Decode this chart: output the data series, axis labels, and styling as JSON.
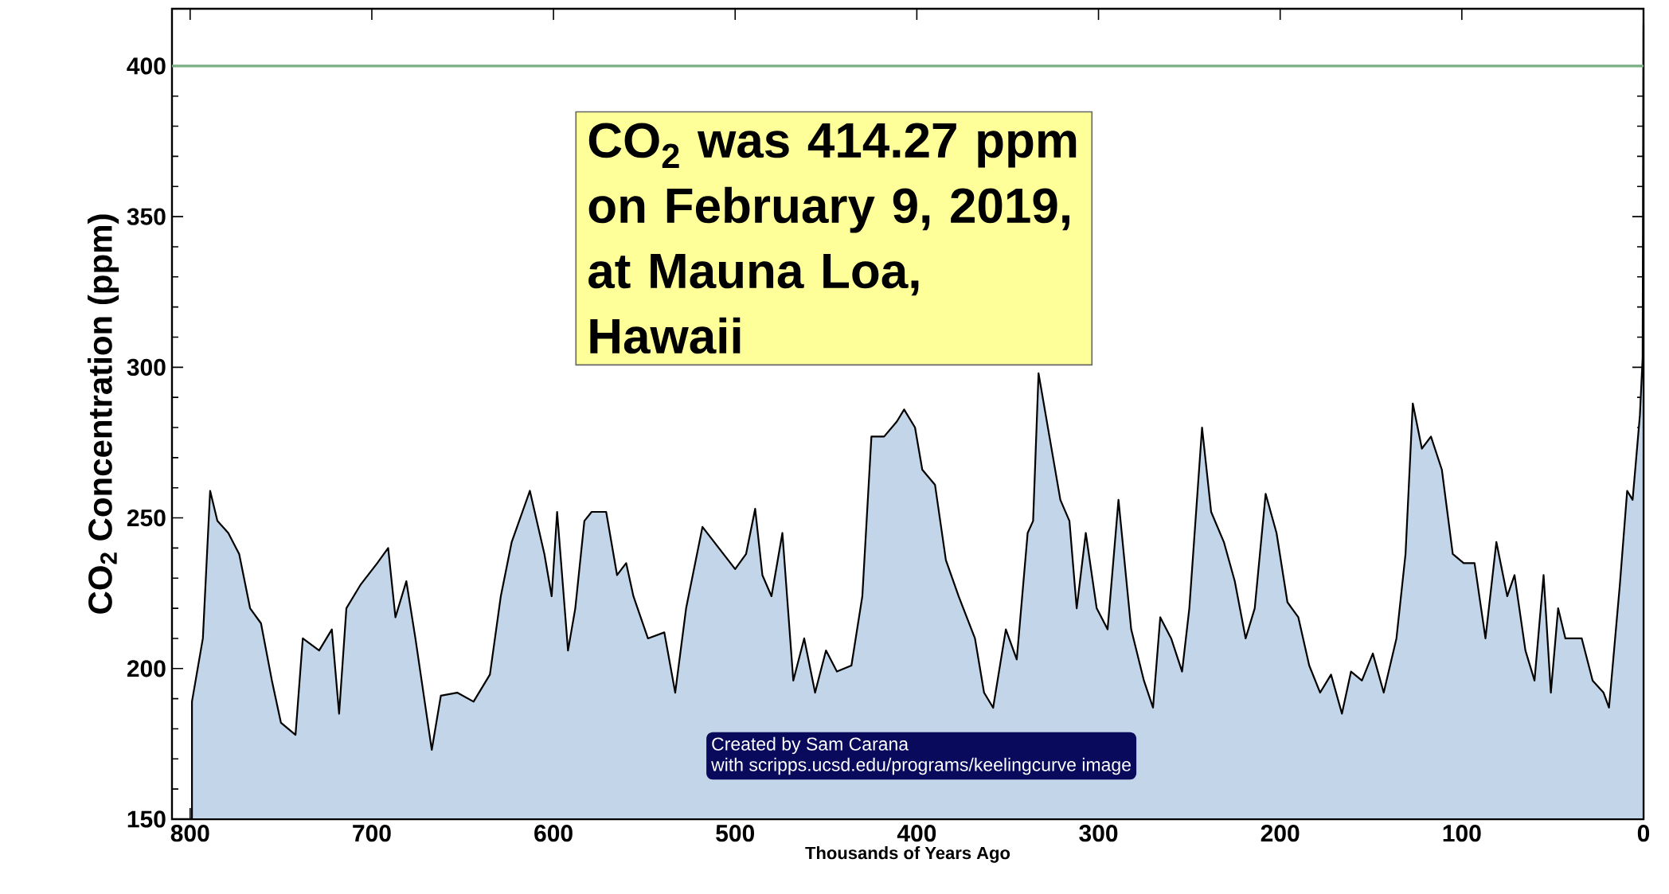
{
  "chart_data": {
    "type": "area",
    "xlabel": "Thousands of Years Ago",
    "ylabel": "CO$_{2}$ Concentration (ppm)",
    "xlim": [
      810,
      0
    ],
    "ylim": [
      150,
      419
    ],
    "xticks": [
      800,
      700,
      600,
      500,
      400,
      300,
      200,
      100,
      0
    ],
    "yticks": [
      150,
      200,
      250,
      300,
      350,
      400
    ],
    "ref_lines": [
      {
        "axis": "y",
        "value": 400,
        "color": "#7aaf84"
      }
    ],
    "annotations": [
      "CO$_{2}$ was 414.27 ppm",
      "on February 9, 2019,",
      "at Mauna Loa, Hawaii",
      "Created by Sam Carana",
      "with  scripps.ucsd.edu/programs/keelingcurve  image"
    ],
    "series": [
      {
        "color": "#c3d5e8",
        "x": [
          799,
          793,
          789,
          785,
          779,
          773,
          767,
          761,
          755,
          750,
          742,
          738,
          729,
          722,
          718,
          714,
          706,
          697,
          691,
          687,
          681,
          676,
          667,
          662,
          653,
          644,
          635,
          629,
          623,
          613,
          605,
          601,
          598,
          592,
          588,
          583,
          579,
          571,
          565,
          560,
          556,
          548,
          539,
          533,
          527,
          518,
          509,
          500,
          494,
          489,
          485,
          480,
          474,
          468,
          462,
          456,
          450,
          444,
          436,
          430,
          425,
          418,
          411,
          407,
          401,
          397,
          390,
          384,
          377,
          368,
          363,
          358,
          351,
          345,
          339,
          336,
          333,
          327,
          321,
          316,
          312,
          307,
          301,
          295,
          289,
          282,
          275,
          270,
          266,
          260,
          254,
          250,
          243,
          238,
          231,
          225,
          219,
          214,
          208,
          202,
          196,
          190,
          184,
          178,
          172,
          166,
          161,
          155,
          149,
          143,
          136,
          131,
          127,
          122,
          117,
          111,
          105,
          99,
          93,
          87,
          81,
          75,
          71,
          65,
          60,
          55,
          51,
          47,
          43,
          34,
          28,
          22,
          19,
          13,
          9,
          6,
          2,
          0.5,
          0
        ],
        "values": [
          189,
          210,
          259,
          249,
          245,
          238,
          220,
          215,
          196,
          182,
          178,
          210,
          206,
          213,
          185,
          220,
          228,
          235,
          240,
          217,
          229,
          210,
          173,
          191,
          192,
          189,
          198,
          224,
          242,
          259,
          238,
          224,
          252,
          206,
          220,
          249,
          252,
          252,
          231,
          235,
          224,
          210,
          212,
          192,
          220,
          247,
          240,
          233,
          238,
          253,
          231,
          224,
          245,
          196,
          210,
          192,
          206,
          199,
          201,
          224,
          277,
          277,
          282,
          286,
          280,
          266,
          261,
          236,
          224,
          210,
          192,
          187,
          213,
          203,
          245,
          249,
          298,
          277,
          256,
          249,
          220,
          245,
          220,
          213,
          256,
          213,
          196,
          187,
          217,
          210,
          199,
          220,
          280,
          252,
          242,
          229,
          210,
          220,
          258,
          245,
          222,
          217,
          201,
          192,
          198,
          185,
          199,
          196,
          205,
          192,
          210,
          238,
          288,
          273,
          277,
          266,
          238,
          235,
          235,
          210,
          242,
          224,
          231,
          206,
          196,
          231,
          192,
          220,
          210,
          210,
          196,
          192,
          187,
          228,
          259,
          256,
          284,
          303,
          414
        ]
      }
    ]
  }
}
